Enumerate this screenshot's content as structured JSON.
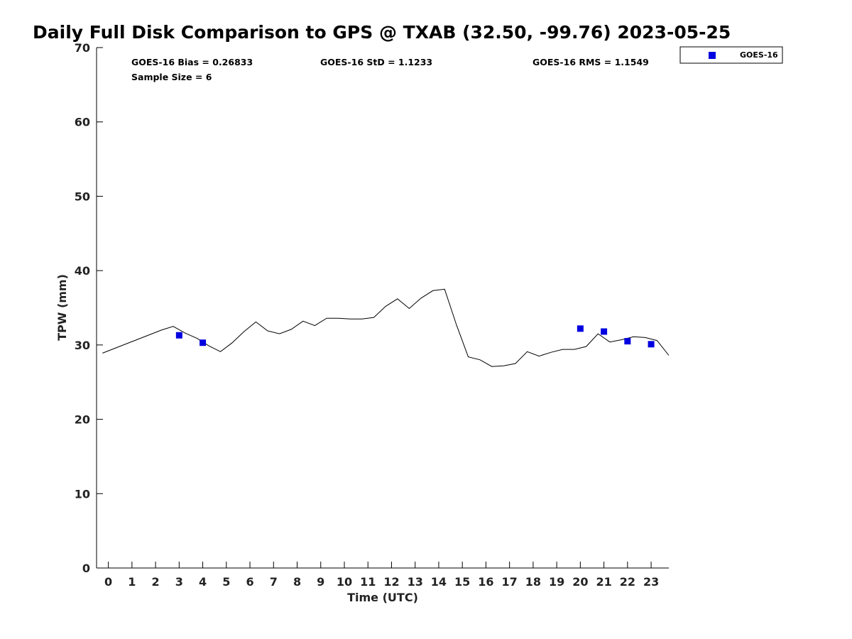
{
  "chart_data": {
    "type": "line",
    "title": "Daily Full Disk Comparison to GPS @ TXAB (32.50, -99.76) 2023-05-25",
    "xlabel": "Time (UTC)",
    "ylabel": "TPW (mm)",
    "xlim": [
      -0.5,
      23.75
    ],
    "ylim": [
      0,
      70
    ],
    "x_ticks": [
      0,
      1,
      2,
      3,
      4,
      5,
      6,
      7,
      8,
      9,
      10,
      11,
      12,
      13,
      14,
      15,
      16,
      17,
      18,
      19,
      20,
      21,
      22,
      23
    ],
    "x_tick_labels": [
      "0",
      "1",
      "2",
      "3",
      "4",
      "5",
      "6",
      "7",
      "8",
      "9",
      "10",
      "11",
      "12",
      "13",
      "14",
      "15",
      "16",
      "17",
      "18",
      "19",
      "20",
      "21",
      "22",
      "23"
    ],
    "y_ticks": [
      0,
      10,
      20,
      30,
      40,
      50,
      60,
      70
    ],
    "y_tick_labels": [
      "0",
      "10",
      "20",
      "30",
      "40",
      "50",
      "60",
      "70"
    ],
    "grid": false,
    "legend_position": "outside-top-right",
    "stats": {
      "bias": "GOES-16 Bias = 0.26833",
      "std": "GOES-16 StD = 1.1233",
      "rms": "GOES-16 RMS = 1.1549",
      "sample_size": "Sample Size = 6"
    },
    "series": [
      {
        "kind": "line",
        "color": "#000000",
        "x": [
          -0.25,
          2.25,
          2.75,
          3.25,
          3.75,
          4.25,
          4.75,
          5.25,
          5.75,
          6.25,
          6.75,
          7.25,
          7.75,
          8.25,
          8.75,
          9.25,
          9.75,
          10.25,
          10.75,
          11.25,
          11.75,
          12.25,
          12.75,
          13.25,
          13.75,
          14.25,
          14.75,
          15.25,
          15.75,
          16.25,
          16.75,
          17.25,
          17.75,
          18.25,
          18.75,
          19.25,
          19.75,
          20.25,
          20.75,
          21.25,
          21.75,
          22.25,
          22.75,
          23.25,
          23.75
        ],
        "y": [
          28.9,
          32.0,
          32.5,
          31.6,
          30.9,
          29.9,
          29.1,
          30.3,
          31.8,
          33.1,
          31.9,
          31.5,
          32.1,
          33.2,
          32.6,
          33.6,
          33.6,
          33.5,
          33.5,
          33.7,
          35.2,
          36.2,
          34.9,
          36.3,
          37.3,
          37.5,
          32.7,
          28.4,
          28.0,
          27.1,
          27.2,
          27.5,
          29.1,
          28.5,
          29.0,
          29.4,
          29.4,
          29.8,
          31.5,
          30.4,
          30.7,
          31.1,
          31.0,
          30.6,
          28.6
        ]
      },
      {
        "kind": "scatter",
        "name": "GOES-16",
        "color": "#0000e0",
        "x": [
          3.0,
          4.0,
          20.0,
          21.0,
          22.0,
          23.0
        ],
        "y": [
          31.3,
          30.3,
          32.2,
          31.8,
          30.5,
          30.1
        ]
      }
    ]
  }
}
